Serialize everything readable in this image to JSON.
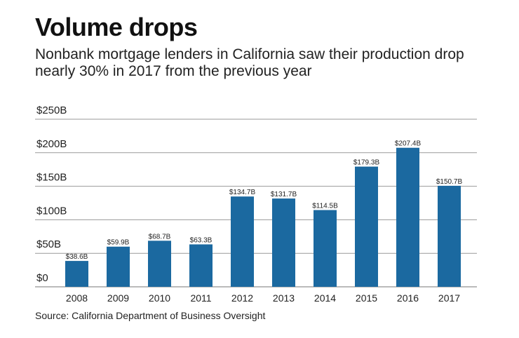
{
  "title": "Volume drops",
  "subtitle": "Nonbank mortgage lenders in California saw their production drop nearly 30% in 2017 from the previous year",
  "source": "Source: California Department of Business Oversight",
  "colors": {
    "bar": "#1b69a0",
    "grid": "#999999"
  },
  "chart_data": {
    "type": "bar",
    "categories": [
      "2008",
      "2009",
      "2010",
      "2011",
      "2012",
      "2013",
      "2014",
      "2015",
      "2016",
      "2017"
    ],
    "values": [
      38.6,
      59.9,
      68.7,
      63.3,
      134.7,
      131.7,
      114.5,
      179.3,
      207.4,
      150.7
    ],
    "data_labels": [
      "$38.6B",
      "$59.9B",
      "$68.7B",
      "$63.3B",
      "$134.7B",
      "$131.7B",
      "$114.5B",
      "$179.3B",
      "$207.4B",
      "$150.7B"
    ],
    "yticks": [
      0,
      50,
      100,
      150,
      200,
      250
    ],
    "ytick_labels": [
      "$0",
      "$50B",
      "$100B",
      "$150B",
      "$200B",
      "$250B"
    ],
    "ylim": [
      0,
      250
    ],
    "grid": true
  }
}
